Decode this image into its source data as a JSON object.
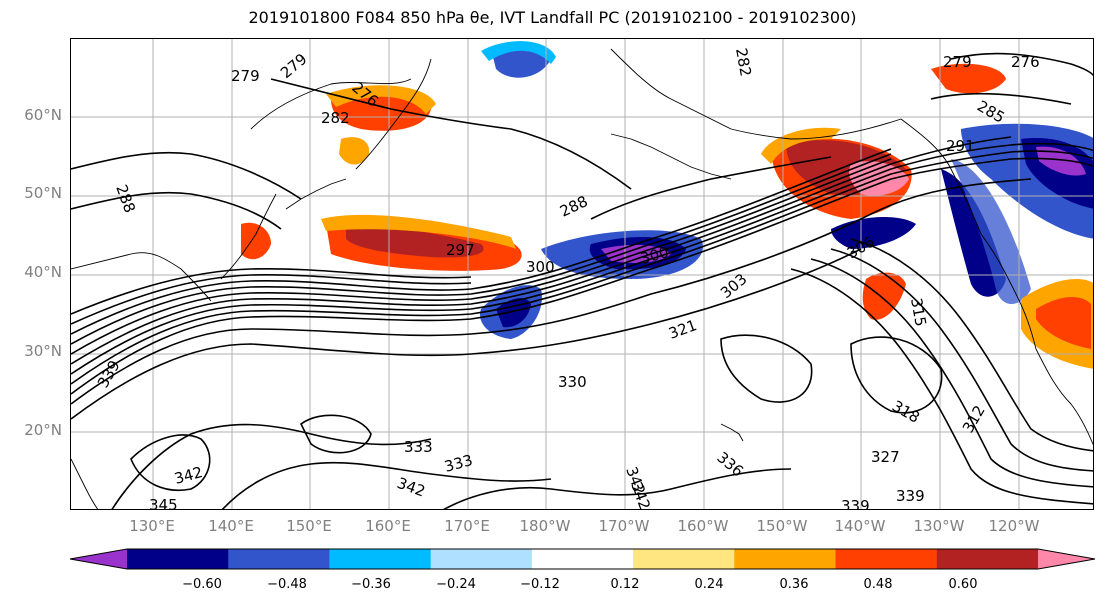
{
  "title": "2019101800 F084 850 hPa θe, IVT Landfall PC (2019102100 - 2019102300)",
  "lat_labels": [
    "60°N",
    "50°N",
    "40°N",
    "30°N",
    "20°N"
  ],
  "lon_labels": [
    "130°E",
    "140°E",
    "150°E",
    "160°E",
    "170°E",
    "180°W",
    "170°W",
    "160°W",
    "150°W",
    "140°W",
    "130°W",
    "120°W"
  ],
  "contour_labels": [
    "279",
    "279",
    "276",
    "282",
    "288",
    "288",
    "297",
    "300",
    "300",
    "303",
    "306",
    "315",
    "321",
    "330",
    "333",
    "333",
    "342",
    "342",
    "345",
    "339",
    "336",
    "342",
    "339",
    "327",
    "318",
    "312",
    "291",
    "285",
    "279",
    "276",
    "282",
    "342",
    "339"
  ],
  "colorbar": {
    "colors": [
      "#9933cc",
      "#000088",
      "#3355cc",
      "#00bbff",
      "#b0e0ff",
      "#ffffff",
      "#ffe680",
      "#ffa500",
      "#ff4000",
      "#b22222",
      "#ff88aa"
    ],
    "ticks": [
      "−0.60",
      "−0.48",
      "−0.36",
      "−0.24",
      "−0.12",
      "0.12",
      "0.24",
      "0.36",
      "0.48",
      "0.60"
    ]
  }
}
